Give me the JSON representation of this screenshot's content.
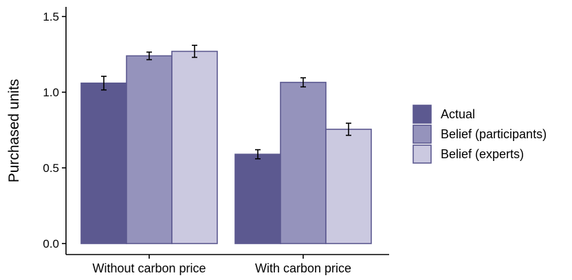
{
  "chart_data": {
    "type": "bar",
    "categories": [
      "Without carbon price",
      "With carbon price"
    ],
    "series": [
      {
        "name": "Actual",
        "values": [
          1.06,
          0.59
        ],
        "errors": [
          0.045,
          0.03
        ],
        "color": "#5c5990"
      },
      {
        "name": "Belief (participants)",
        "values": [
          1.24,
          1.065
        ],
        "errors": [
          0.025,
          0.03
        ],
        "color": "#9593bc"
      },
      {
        "name": "Belief (experts)",
        "values": [
          1.27,
          0.755
        ],
        "errors": [
          0.04,
          0.04
        ],
        "color": "#cbc9e0"
      }
    ],
    "bar_stroke": "#5c5990",
    "ylabel": "Purchased units",
    "ylim": [
      0,
      1.55
    ],
    "yticks": [
      0.0,
      0.5,
      1.0,
      1.5
    ],
    "ytick_labels": [
      "0.0",
      "0.5",
      "1.0",
      "1.5"
    ],
    "legend_position": "right",
    "grid": false
  }
}
